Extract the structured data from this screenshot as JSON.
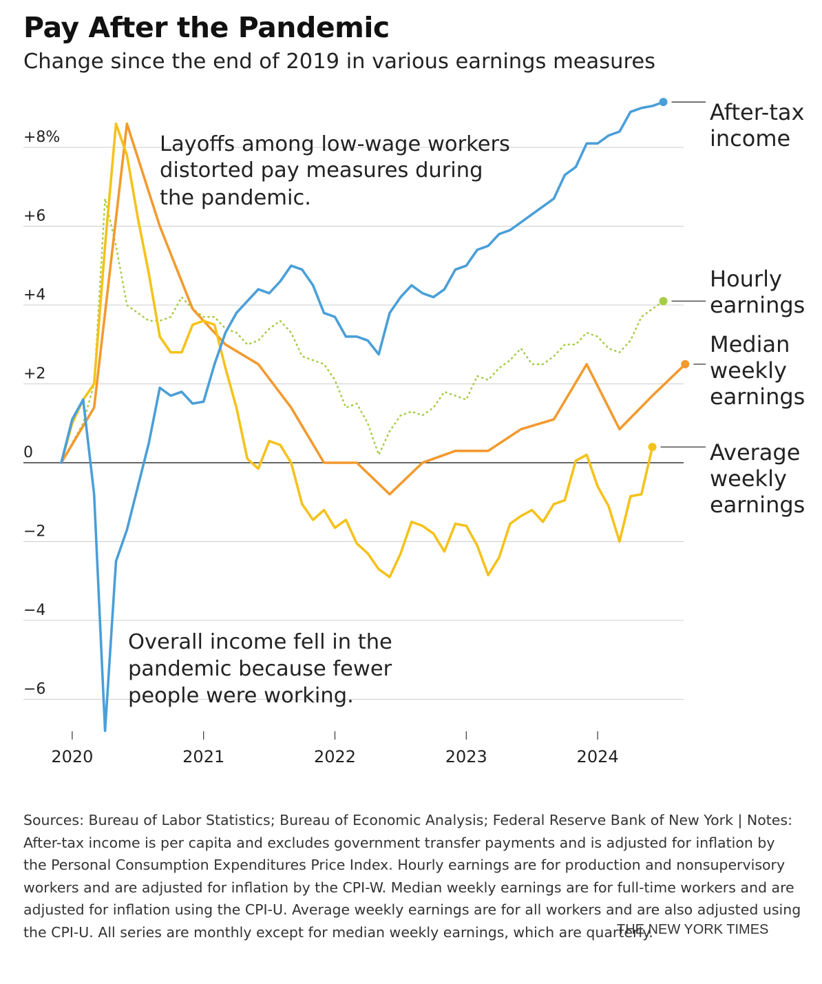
{
  "title": "Pay After the Pandemic",
  "subtitle": "Change since the end of 2019 in various earnings measures",
  "annotations": {
    "top": [
      "Layoffs among low-wage workers",
      "distorted pay measures during",
      "the pandemic."
    ],
    "bottom": [
      "Overall income fell in the",
      "pandemic because fewer",
      "people were working."
    ]
  },
  "footer": "Sources: Bureau of Labor Statistics; Bureau of Economic Analysis; Federal Reserve Bank of New York | Notes: After-tax income is per capita and excludes government transfer payments and is adjusted for inflation by the Personal Consumption Expenditures Price Index. Hourly earnings are for production and nonsupervisory workers and are adjusted for inflation by the CPI-W. Median weekly earnings are for full-time workers and are adjusted for inflation using the CPI-U. Average weekly earnings are for all workers and are also adjusted using the CPI-U. All series are monthly except for median weekly earnings, which are quarterly.",
  "credit": "THE NEW YORK TIMES",
  "chart_data": {
    "type": "line",
    "title": "Pay After the Pandemic",
    "subtitle": "Change since the end of 2019 in various earnings measures",
    "x_tick_labels": [
      "2020",
      "2021",
      "2022",
      "2023",
      "2024"
    ],
    "y_ticks": [
      8,
      6,
      4,
      2,
      0,
      -2,
      -4,
      -6
    ],
    "y_tick_labels": [
      "+8%",
      "+6",
      "+4",
      "+2",
      "0",
      "−2",
      "−4",
      "−6"
    ],
    "ylim": [
      -7,
      9
    ],
    "x_range": [
      "2019-12",
      "2024-09"
    ],
    "grid": true,
    "legend": "direct labels at right end of lines",
    "series": [
      {
        "name": "After-tax income",
        "label_lines": [
          "After-tax",
          "income"
        ],
        "color": "#4a9fd8",
        "style": "solid",
        "frequency": "monthly",
        "start": "2019-12",
        "values": [
          0.0,
          1.1,
          1.6,
          -0.8,
          -6.8,
          -2.5,
          -1.7,
          -0.6,
          0.5,
          1.9,
          1.7,
          1.8,
          1.5,
          1.55,
          2.5,
          3.3,
          3.8,
          4.1,
          4.4,
          4.3,
          4.6,
          5.0,
          4.9,
          4.5,
          3.8,
          3.7,
          3.2,
          3.2,
          3.1,
          2.75,
          3.8,
          4.2,
          4.5,
          4.3,
          4.2,
          4.4,
          4.9,
          5.0,
          5.4,
          5.5,
          5.8,
          5.9,
          6.1,
          6.3,
          6.5,
          6.7,
          7.3,
          7.5,
          8.1,
          8.1,
          8.3,
          8.4,
          8.9,
          9.0,
          9.05,
          9.15
        ]
      },
      {
        "name": "Hourly earnings",
        "label_lines": [
          "Hourly",
          "earnings"
        ],
        "color": "#a6cc45",
        "style": "dotted",
        "frequency": "monthly",
        "start": "2019-12",
        "values": [
          0.0,
          0.5,
          1.0,
          2.0,
          6.7,
          5.5,
          4.0,
          3.8,
          3.6,
          3.6,
          3.7,
          4.2,
          3.9,
          3.7,
          3.7,
          3.4,
          3.3,
          3.0,
          3.1,
          3.4,
          3.6,
          3.3,
          2.7,
          2.6,
          2.5,
          2.1,
          1.4,
          1.5,
          1.0,
          0.2,
          0.8,
          1.2,
          1.3,
          1.2,
          1.4,
          1.8,
          1.7,
          1.6,
          2.2,
          2.1,
          2.4,
          2.6,
          2.9,
          2.5,
          2.5,
          2.7,
          3.0,
          3.0,
          3.3,
          3.2,
          2.9,
          2.8,
          3.1,
          3.7,
          3.9,
          4.1
        ]
      },
      {
        "name": "Median weekly earnings",
        "label_lines": [
          "Median",
          "weekly",
          "earnings"
        ],
        "color": "#f29a2e",
        "style": "solid",
        "frequency": "quarterly",
        "start": "2019-12",
        "values": [
          0.0,
          1.4,
          8.6,
          6.0,
          3.9,
          3.0,
          2.5,
          1.4,
          0.0,
          0.0,
          -0.8,
          0.0,
          0.3,
          0.3,
          0.85,
          1.1,
          2.5,
          0.85,
          1.7,
          2.5
        ]
      },
      {
        "name": "Average weekly earnings",
        "label_lines": [
          "Average",
          "weekly",
          "earnings"
        ],
        "color": "#f5c21b",
        "style": "solid",
        "frequency": "monthly",
        "start": "2019-12",
        "values": [
          0.0,
          1.0,
          1.6,
          2.0,
          5.5,
          8.6,
          7.8,
          6.2,
          4.8,
          3.2,
          2.8,
          2.8,
          3.5,
          3.6,
          3.5,
          2.4,
          1.4,
          0.1,
          -0.15,
          0.55,
          0.45,
          0.0,
          -1.05,
          -1.45,
          -1.2,
          -1.65,
          -1.45,
          -2.05,
          -2.3,
          -2.7,
          -2.9,
          -2.3,
          -1.5,
          -1.6,
          -1.8,
          -2.25,
          -1.55,
          -1.6,
          -2.1,
          -2.85,
          -2.4,
          -1.55,
          -1.35,
          -1.2,
          -1.5,
          -1.05,
          -0.95,
          0.05,
          0.2,
          -0.6,
          -1.1,
          -2.0,
          -0.85,
          -0.8,
          0.4
        ]
      }
    ]
  }
}
